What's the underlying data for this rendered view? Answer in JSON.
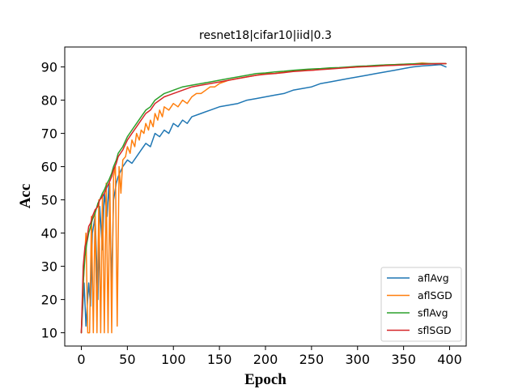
{
  "chart_data": {
    "type": "line",
    "title": "resnet18|cifar10|iid|0.3",
    "xlabel": "Epoch",
    "ylabel": "Acc",
    "xlim": [
      -18,
      418
    ],
    "ylim": [
      6,
      96
    ],
    "xticks": [
      0,
      50,
      100,
      150,
      200,
      250,
      300,
      350,
      400
    ],
    "yticks": [
      10,
      20,
      30,
      40,
      50,
      60,
      70,
      80,
      90
    ],
    "grid": false,
    "legend_position": "lower-right",
    "series": [
      {
        "name": "aflAvg",
        "color": "#1f77b4",
        "points": [
          [
            0,
            10
          ],
          [
            3,
            25
          ],
          [
            5,
            12
          ],
          [
            8,
            25
          ],
          [
            10,
            18
          ],
          [
            12,
            40
          ],
          [
            15,
            45
          ],
          [
            18,
            20
          ],
          [
            20,
            48
          ],
          [
            23,
            35
          ],
          [
            25,
            52
          ],
          [
            28,
            45
          ],
          [
            30,
            55
          ],
          [
            33,
            25
          ],
          [
            35,
            50
          ],
          [
            38,
            55
          ],
          [
            40,
            57
          ],
          [
            45,
            60
          ],
          [
            50,
            62
          ],
          [
            55,
            61
          ],
          [
            60,
            63
          ],
          [
            65,
            65
          ],
          [
            70,
            67
          ],
          [
            75,
            66
          ],
          [
            80,
            70
          ],
          [
            85,
            69
          ],
          [
            90,
            71
          ],
          [
            95,
            70
          ],
          [
            100,
            73
          ],
          [
            105,
            72
          ],
          [
            110,
            74
          ],
          [
            115,
            73
          ],
          [
            120,
            75
          ],
          [
            130,
            76
          ],
          [
            140,
            77
          ],
          [
            150,
            78
          ],
          [
            160,
            78.5
          ],
          [
            170,
            79
          ],
          [
            180,
            80
          ],
          [
            190,
            80.5
          ],
          [
            200,
            81
          ],
          [
            210,
            81.5
          ],
          [
            220,
            82
          ],
          [
            230,
            83
          ],
          [
            240,
            83.5
          ],
          [
            250,
            84
          ],
          [
            260,
            85
          ],
          [
            270,
            85.5
          ],
          [
            280,
            86
          ],
          [
            290,
            86.5
          ],
          [
            300,
            87
          ],
          [
            310,
            87.5
          ],
          [
            320,
            88
          ],
          [
            330,
            88.5
          ],
          [
            340,
            89
          ],
          [
            350,
            89.5
          ],
          [
            360,
            90
          ],
          [
            370,
            90.3
          ],
          [
            380,
            90.5
          ],
          [
            390,
            90.7
          ],
          [
            396,
            90
          ]
        ]
      },
      {
        "name": "aflSGD",
        "color": "#ff7f0e",
        "points": [
          [
            0,
            10
          ],
          [
            3,
            30
          ],
          [
            5,
            40
          ],
          [
            7,
            10
          ],
          [
            9,
            10
          ],
          [
            11,
            45
          ],
          [
            13,
            10
          ],
          [
            15,
            47
          ],
          [
            17,
            10
          ],
          [
            19,
            50
          ],
          [
            21,
            10
          ],
          [
            23,
            52
          ],
          [
            25,
            10
          ],
          [
            27,
            55
          ],
          [
            29,
            10
          ],
          [
            31,
            55
          ],
          [
            33,
            10
          ],
          [
            35,
            57
          ],
          [
            37,
            60
          ],
          [
            39,
            12
          ],
          [
            41,
            60
          ],
          [
            43,
            52
          ],
          [
            45,
            62
          ],
          [
            48,
            63
          ],
          [
            50,
            66
          ],
          [
            53,
            64
          ],
          [
            55,
            68
          ],
          [
            58,
            66
          ],
          [
            60,
            70
          ],
          [
            63,
            68
          ],
          [
            65,
            71
          ],
          [
            68,
            70
          ],
          [
            70,
            73
          ],
          [
            73,
            71
          ],
          [
            75,
            74
          ],
          [
            78,
            72
          ],
          [
            80,
            76
          ],
          [
            83,
            74
          ],
          [
            85,
            77
          ],
          [
            88,
            75
          ],
          [
            90,
            78
          ],
          [
            95,
            77
          ],
          [
            100,
            79
          ],
          [
            105,
            78
          ],
          [
            110,
            80
          ],
          [
            115,
            79
          ],
          [
            120,
            81
          ],
          [
            125,
            82
          ],
          [
            130,
            82
          ],
          [
            135,
            83
          ],
          [
            140,
            84
          ],
          [
            145,
            84
          ],
          [
            150,
            85
          ],
          [
            160,
            86
          ],
          [
            170,
            86.5
          ],
          [
            180,
            87
          ],
          [
            190,
            87.5
          ],
          [
            200,
            88
          ],
          [
            210,
            88
          ],
          [
            220,
            88.5
          ],
          [
            230,
            88.8
          ],
          [
            240,
            89
          ],
          [
            250,
            89
          ],
          [
            260,
            89.3
          ],
          [
            270,
            89.5
          ],
          [
            280,
            89.7
          ],
          [
            290,
            89.8
          ],
          [
            300,
            90
          ],
          [
            310,
            90.2
          ],
          [
            320,
            90.4
          ],
          [
            330,
            90.6
          ],
          [
            340,
            90.7
          ],
          [
            350,
            90.8
          ],
          [
            360,
            90.9
          ],
          [
            370,
            91.2
          ],
          [
            380,
            91
          ],
          [
            390,
            91
          ],
          [
            396,
            91
          ]
        ]
      },
      {
        "name": "sflAvg",
        "color": "#2ca02c",
        "points": [
          [
            0,
            10
          ],
          [
            2,
            25
          ],
          [
            4,
            33
          ],
          [
            6,
            37
          ],
          [
            8,
            40
          ],
          [
            10,
            42
          ],
          [
            12,
            44
          ],
          [
            15,
            46
          ],
          [
            18,
            49
          ],
          [
            20,
            50
          ],
          [
            23,
            52
          ],
          [
            25,
            53
          ],
          [
            28,
            55
          ],
          [
            30,
            56
          ],
          [
            33,
            58
          ],
          [
            35,
            60
          ],
          [
            38,
            62
          ],
          [
            40,
            64
          ],
          [
            45,
            66
          ],
          [
            50,
            69
          ],
          [
            55,
            71
          ],
          [
            60,
            73
          ],
          [
            65,
            75
          ],
          [
            70,
            77
          ],
          [
            75,
            78
          ],
          [
            80,
            80
          ],
          [
            85,
            81
          ],
          [
            90,
            82
          ],
          [
            95,
            82.5
          ],
          [
            100,
            83
          ],
          [
            110,
            84
          ],
          [
            120,
            84.5
          ],
          [
            130,
            85
          ],
          [
            140,
            85.5
          ],
          [
            150,
            86
          ],
          [
            160,
            86.5
          ],
          [
            170,
            87
          ],
          [
            180,
            87.5
          ],
          [
            190,
            88
          ],
          [
            200,
            88.2
          ],
          [
            210,
            88.5
          ],
          [
            220,
            88.7
          ],
          [
            230,
            89
          ],
          [
            240,
            89.2
          ],
          [
            250,
            89.4
          ],
          [
            260,
            89.5
          ],
          [
            270,
            89.7
          ],
          [
            280,
            89.8
          ],
          [
            290,
            90
          ],
          [
            300,
            90.2
          ],
          [
            310,
            90.3
          ],
          [
            320,
            90.5
          ],
          [
            330,
            90.6
          ],
          [
            340,
            90.7
          ],
          [
            350,
            90.8
          ],
          [
            360,
            90.9
          ],
          [
            370,
            91
          ],
          [
            380,
            91
          ],
          [
            390,
            91
          ],
          [
            396,
            91
          ]
        ]
      },
      {
        "name": "sflSGD",
        "color": "#d62728",
        "points": [
          [
            0,
            10
          ],
          [
            2,
            30
          ],
          [
            4,
            36
          ],
          [
            6,
            38
          ],
          [
            8,
            42
          ],
          [
            10,
            43
          ],
          [
            12,
            45
          ],
          [
            15,
            47
          ],
          [
            18,
            48
          ],
          [
            20,
            50
          ],
          [
            23,
            51
          ],
          [
            25,
            52
          ],
          [
            28,
            54
          ],
          [
            30,
            55
          ],
          [
            33,
            57
          ],
          [
            35,
            59
          ],
          [
            38,
            61
          ],
          [
            40,
            63
          ],
          [
            45,
            65
          ],
          [
            50,
            68
          ],
          [
            55,
            70
          ],
          [
            60,
            72
          ],
          [
            65,
            74
          ],
          [
            70,
            76
          ],
          [
            75,
            77
          ],
          [
            80,
            79
          ],
          [
            85,
            80
          ],
          [
            90,
            81
          ],
          [
            95,
            81.5
          ],
          [
            100,
            82
          ],
          [
            110,
            83
          ],
          [
            120,
            84
          ],
          [
            130,
            84.5
          ],
          [
            140,
            85
          ],
          [
            150,
            85.5
          ],
          [
            160,
            86
          ],
          [
            170,
            86.5
          ],
          [
            180,
            87
          ],
          [
            190,
            87.5
          ],
          [
            200,
            87.8
          ],
          [
            210,
            88
          ],
          [
            220,
            88.3
          ],
          [
            230,
            88.6
          ],
          [
            240,
            88.8
          ],
          [
            250,
            89
          ],
          [
            260,
            89.2
          ],
          [
            270,
            89.4
          ],
          [
            280,
            89.6
          ],
          [
            290,
            89.8
          ],
          [
            300,
            90
          ],
          [
            310,
            90.1
          ],
          [
            320,
            90.2
          ],
          [
            330,
            90.4
          ],
          [
            340,
            90.5
          ],
          [
            350,
            90.6
          ],
          [
            360,
            90.7
          ],
          [
            370,
            90.8
          ],
          [
            380,
            90.9
          ],
          [
            390,
            91
          ],
          [
            396,
            91
          ]
        ]
      }
    ]
  }
}
